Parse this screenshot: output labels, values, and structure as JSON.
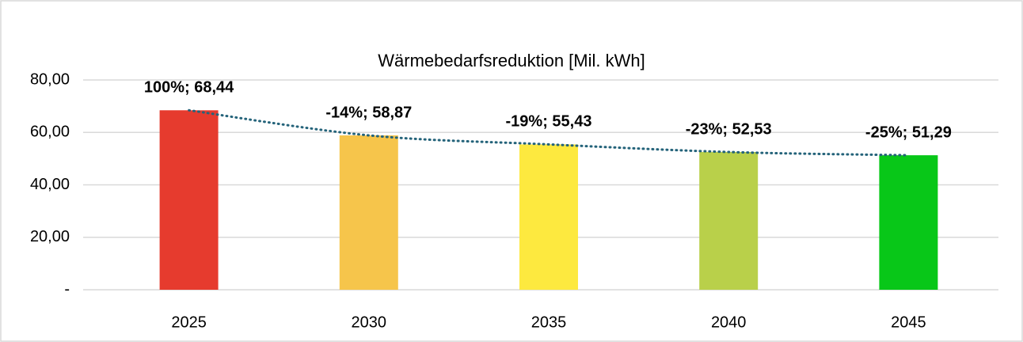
{
  "chart_data": {
    "type": "bar",
    "title": "Wärmebedarfsreduktion [Mil. kWh]",
    "categories": [
      "2025",
      "2030",
      "2035",
      "2040",
      "2045"
    ],
    "values": [
      68.44,
      58.87,
      55.43,
      52.53,
      51.29
    ],
    "value_labels": [
      "100%;  68,44",
      "-14%;  58,87",
      "-19%;  55,43",
      "-23%;  52,53",
      "-25%;  51,29"
    ],
    "colors": [
      "#e63b2e",
      "#f6c54b",
      "#fde93f",
      "#b9d04a",
      "#08c718"
    ],
    "ylim": [
      0,
      80
    ],
    "yticks": [
      {
        "value": 0,
        "label": "-"
      },
      {
        "value": 20,
        "label": "20,00"
      },
      {
        "value": 40,
        "label": "40,00"
      },
      {
        "value": 60,
        "label": "60,00"
      },
      {
        "value": 80,
        "label": "80,00"
      }
    ],
    "grid": true,
    "trendline": {
      "color": "#24637a"
    }
  }
}
